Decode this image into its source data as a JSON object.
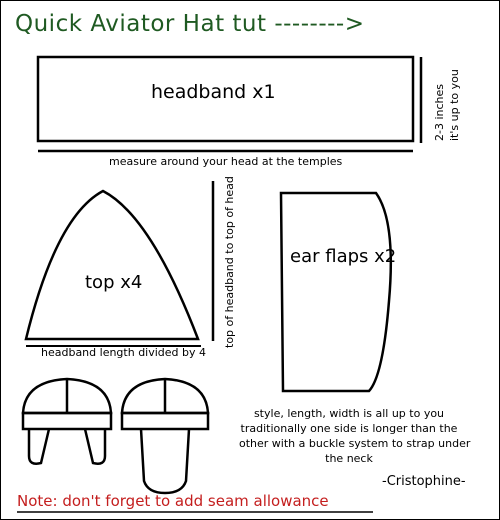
{
  "title": "Quick Aviator Hat tut -------->",
  "headband": {
    "label": "headband x1",
    "width_note_line1": "2-3 inches",
    "width_note_line2": "it's up to you",
    "measure_note": "measure around your head at the temples"
  },
  "top": {
    "label": "top x4",
    "height_note": "top of headband to top of head",
    "width_note": "headband length divided by 4"
  },
  "ear_flaps": {
    "label": "ear flaps x2"
  },
  "style_note": [
    "style, length, width is all up to you",
    "traditionally one side is longer than the",
    "other with a buckle system to strap under",
    "the neck"
  ],
  "credit": "-Cristophine-",
  "note": "Note: don't forget to add seam allowance",
  "colors": {
    "title": "#1f5a22",
    "note": "#c41e1e",
    "ink": "#000000"
  }
}
